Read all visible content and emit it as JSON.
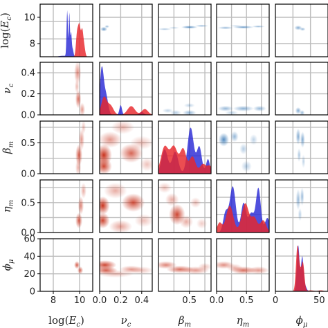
{
  "chart_data": {
    "type": "corner",
    "n": 5,
    "grid": true,
    "colors": {
      "blue": "#2a2ad6",
      "red": "#e8262b",
      "overlap": "#8e2f73",
      "blue_contour": "#2b6fb0",
      "red_contour": "#c8321c"
    },
    "params": [
      {
        "name": "logEc",
        "label_main": "log(",
        "label_sub_base": "E",
        "label_sub": "c",
        "label_close": ")",
        "range": [
          7,
          11
        ],
        "grid": [
          8,
          10
        ],
        "ticks": [
          8,
          10
        ],
        "tick_labels": [
          "8",
          "10"
        ],
        "yticks": [
          8,
          10
        ],
        "ytick_labels": [
          "8",
          "10"
        ]
      },
      {
        "name": "nu_c",
        "label_main": "ν",
        "label_sub": "c",
        "range": [
          0,
          0.5
        ],
        "grid": [
          0.2,
          0.4
        ],
        "ticks": [
          0.0,
          0.2,
          0.4
        ],
        "tick_labels": [
          "0.0",
          "0.2",
          "0.4"
        ],
        "yticks": [
          0.0,
          0.2,
          0.4
        ],
        "ytick_labels": [
          "0.0",
          "0.2",
          "0.4"
        ]
      },
      {
        "name": "beta_m",
        "label_main": "β",
        "label_sub": "m",
        "range": [
          0,
          0.85
        ],
        "grid": [
          0.25,
          0.5,
          0.75
        ],
        "ticks": [
          0.5
        ],
        "tick_labels": [
          "0.5"
        ],
        "yticks": [
          0.0,
          0.5
        ],
        "ytick_labels": [
          "0.0",
          "0.5"
        ]
      },
      {
        "name": "eta_m",
        "label_main": "η",
        "label_sub": "m",
        "range": [
          0,
          0.88
        ],
        "grid": [
          0.25,
          0.5,
          0.75
        ],
        "ticks": [
          0.0,
          0.5
        ],
        "tick_labels": [
          "0.0",
          "0.5"
        ],
        "yticks": [
          0.0,
          0.5
        ],
        "ytick_labels": [
          "0.0",
          "0.5"
        ]
      },
      {
        "name": "phi_mu",
        "label_main": "ϕ",
        "label_sub": "μ",
        "range": [
          0,
          60
        ],
        "grid": [
          20,
          40
        ],
        "ticks": [
          0,
          50
        ],
        "tick_labels": [
          "0",
          "50"
        ],
        "yticks": [
          0,
          20,
          40,
          60
        ],
        "ytick_labels": [
          "0",
          "20",
          "40",
          "60"
        ]
      }
    ],
    "diagonal": [
      {
        "param": 0,
        "series": [
          {
            "color": "blue",
            "peaks": [
              [
                9.06,
                0.95,
                0.05
              ],
              [
                9.22,
                0.9,
                0.04
              ],
              [
                9.35,
                0.5,
                0.05
              ],
              [
                9.48,
                0.15,
                0.06
              ],
              [
                8.75,
                0.02,
                0.3
              ]
            ]
          },
          {
            "color": "red",
            "peaks": [
              [
                9.8,
                0.4,
                0.08
              ],
              [
                9.98,
                0.65,
                0.1
              ],
              [
                10.2,
                0.5,
                0.08
              ],
              [
                10.35,
                0.2,
                0.08
              ]
            ]
          }
        ]
      },
      {
        "param": 1,
        "series": [
          {
            "color": "blue",
            "peaks": [
              [
                0.02,
                0.95,
                0.018
              ],
              [
                0.06,
                0.4,
                0.02
              ],
              [
                0.2,
                0.2,
                0.012
              ],
              [
                0.4,
                0.06,
                0.02
              ]
            ]
          },
          {
            "color": "red",
            "peaks": [
              [
                0.04,
                0.35,
                0.025
              ],
              [
                0.1,
                0.2,
                0.03
              ],
              [
                0.3,
                0.18,
                0.035
              ],
              [
                0.43,
                0.12,
                0.03
              ]
            ]
          }
        ]
      },
      {
        "param": 2,
        "series": [
          {
            "color": "blue",
            "peaks": [
              [
                0.1,
                0.5,
                0.05
              ],
              [
                0.27,
                0.45,
                0.05
              ],
              [
                0.52,
                0.95,
                0.05
              ],
              [
                0.66,
                0.55,
                0.04
              ],
              [
                0.8,
                0.3,
                0.03
              ]
            ]
          },
          {
            "color": "red",
            "peaks": [
              [
                0.1,
                0.55,
                0.06
              ],
              [
                0.25,
                0.55,
                0.06
              ],
              [
                0.4,
                0.5,
                0.05
              ],
              [
                0.55,
                0.35,
                0.05
              ],
              [
                0.72,
                0.2,
                0.05
              ],
              [
                0.83,
                0.15,
                0.04
              ]
            ]
          }
        ]
      },
      {
        "param": 3,
        "series": [
          {
            "color": "blue",
            "peaks": [
              [
                0.15,
                0.4,
                0.04
              ],
              [
                0.27,
                0.95,
                0.05
              ],
              [
                0.45,
                0.6,
                0.04
              ],
              [
                0.58,
                0.4,
                0.05
              ],
              [
                0.7,
                0.9,
                0.04
              ],
              [
                0.85,
                0.3,
                0.04
              ]
            ]
          },
          {
            "color": "red",
            "peaks": [
              [
                0.05,
                0.2,
                0.04
              ],
              [
                0.22,
                0.55,
                0.06
              ],
              [
                0.48,
                0.6,
                0.06
              ],
              [
                0.63,
                0.3,
                0.05
              ],
              [
                0.78,
                0.25,
                0.05
              ]
            ]
          }
        ]
      },
      {
        "param": 4,
        "series": [
          {
            "color": "blue",
            "peaks": [
              [
                26,
                0.95,
                1.5
              ],
              [
                30.5,
                0.65,
                1.3
              ],
              [
                33,
                0.15,
                2.0
              ]
            ]
          },
          {
            "color": "red",
            "peaks": [
              [
                25,
                0.85,
                1.6
              ],
              [
                28,
                0.35,
                1.8
              ],
              [
                31.5,
                0.55,
                1.6
              ],
              [
                40,
                0.02,
                4
              ],
              [
                52,
                0.02,
                3
              ]
            ]
          }
        ]
      }
    ],
    "upper": [
      {
        "row": 0,
        "col": 1,
        "color": "blue_contour",
        "blobs": [
          [
            0.04,
            9.1,
            0.015,
            0.08,
            0.7
          ],
          [
            0.07,
            9.3,
            0.01,
            0.05,
            0.5
          ]
        ]
      },
      {
        "row": 0,
        "col": 2,
        "color": "blue_contour",
        "blobs": [
          [
            0.1,
            9.1,
            0.05,
            0.04,
            0.4
          ],
          [
            0.5,
            9.25,
            0.06,
            0.05,
            0.8
          ],
          [
            0.7,
            9.35,
            0.05,
            0.04,
            0.5
          ],
          [
            0.25,
            9.2,
            0.04,
            0.04,
            0.3
          ]
        ]
      },
      {
        "row": 0,
        "col": 3,
        "color": "blue_contour",
        "blobs": [
          [
            0.15,
            9.2,
            0.06,
            0.05,
            0.5
          ],
          [
            0.45,
            9.25,
            0.08,
            0.05,
            0.7
          ],
          [
            0.7,
            9.3,
            0.05,
            0.04,
            0.5
          ],
          [
            0.32,
            9.35,
            0.05,
            0.03,
            0.3
          ]
        ]
      },
      {
        "row": 0,
        "col": 4,
        "color": "blue_contour",
        "blobs": [
          [
            26,
            9.2,
            2.0,
            0.08,
            0.6
          ],
          [
            31,
            9.1,
            1.5,
            0.06,
            0.5
          ]
        ]
      },
      {
        "row": 1,
        "col": 2,
        "color": "blue_contour",
        "blobs": [
          [
            0.5,
            0.02,
            0.05,
            0.012,
            0.5
          ],
          [
            0.28,
            0.02,
            0.04,
            0.012,
            0.35
          ],
          [
            0.15,
            0.04,
            0.04,
            0.01,
            0.3
          ],
          [
            0.5,
            0.09,
            0.04,
            0.01,
            0.3
          ]
        ]
      },
      {
        "row": 1,
        "col": 3,
        "color": "blue_contour",
        "blobs": [
          [
            0.15,
            0.06,
            0.06,
            0.012,
            0.5
          ],
          [
            0.45,
            0.06,
            0.08,
            0.012,
            0.55
          ],
          [
            0.72,
            0.06,
            0.05,
            0.012,
            0.5
          ],
          [
            0.25,
            0.02,
            0.05,
            0.01,
            0.3
          ]
        ]
      },
      {
        "row": 1,
        "col": 4,
        "color": "blue_contour",
        "blobs": [
          [
            26,
            0.04,
            1.5,
            0.015,
            0.6
          ],
          [
            30.5,
            0.02,
            1.3,
            0.012,
            0.5
          ]
        ]
      },
      {
        "row": 2,
        "col": 3,
        "color": "blue_contour",
        "blobs": [
          [
            0.12,
            0.55,
            0.04,
            0.05,
            0.8
          ],
          [
            0.3,
            0.6,
            0.03,
            0.04,
            0.5
          ],
          [
            0.45,
            0.4,
            0.03,
            0.04,
            0.35
          ],
          [
            0.5,
            0.12,
            0.04,
            0.04,
            0.35
          ],
          [
            0.62,
            0.55,
            0.03,
            0.04,
            0.3
          ]
        ]
      },
      {
        "row": 2,
        "col": 4,
        "color": "blue_contour",
        "blobs": [
          [
            26,
            0.6,
            1.2,
            0.06,
            0.6
          ],
          [
            31,
            0.55,
            1.2,
            0.06,
            0.6
          ],
          [
            27,
            0.3,
            1.0,
            0.05,
            0.4
          ],
          [
            32,
            0.2,
            1.0,
            0.05,
            0.3
          ]
        ]
      },
      {
        "row": 3,
        "col": 4,
        "color": "blue_contour",
        "blobs": [
          [
            26,
            0.55,
            1.2,
            0.08,
            0.5
          ],
          [
            30.5,
            0.6,
            1.0,
            0.07,
            0.5
          ],
          [
            28,
            0.3,
            1.0,
            0.05,
            0.35
          ]
        ]
      }
    ],
    "lower": [
      {
        "row": 1,
        "col": 0,
        "color": "red_contour",
        "blobs": [
          [
            9.85,
            0.4,
            0.12,
            0.05,
            0.55
          ],
          [
            9.9,
            0.15,
            0.1,
            0.04,
            0.7
          ],
          [
            10.2,
            0.05,
            0.1,
            0.03,
            0.5
          ],
          [
            9.8,
            0.27,
            0.08,
            0.03,
            0.35
          ]
        ]
      },
      {
        "row": 2,
        "col": 0,
        "color": "red_contour",
        "blobs": [
          [
            9.95,
            0.3,
            0.12,
            0.08,
            0.8
          ],
          [
            10.15,
            0.55,
            0.1,
            0.08,
            0.5
          ],
          [
            9.9,
            0.1,
            0.1,
            0.06,
            0.4
          ],
          [
            10.3,
            0.75,
            0.08,
            0.05,
            0.3
          ]
        ]
      },
      {
        "row": 3,
        "col": 0,
        "color": "red_contour",
        "blobs": [
          [
            9.95,
            0.2,
            0.12,
            0.06,
            0.8
          ],
          [
            10.1,
            0.45,
            0.1,
            0.07,
            0.6
          ],
          [
            10.3,
            0.7,
            0.1,
            0.06,
            0.4
          ]
        ]
      },
      {
        "row": 4,
        "col": 0,
        "color": "red_contour",
        "blobs": [
          [
            9.8,
            30,
            0.1,
            2.0,
            0.8
          ],
          [
            10.05,
            24,
            0.1,
            2.0,
            0.7
          ]
        ]
      },
      {
        "row": 2,
        "col": 1,
        "color": "red_contour",
        "blobs": [
          [
            0.04,
            0.3,
            0.035,
            0.08,
            1.0
          ],
          [
            0.04,
            0.12,
            0.035,
            0.06,
            0.9
          ],
          [
            0.3,
            0.33,
            0.05,
            0.07,
            0.75
          ],
          [
            0.1,
            0.55,
            0.05,
            0.06,
            0.5
          ],
          [
            0.22,
            0.75,
            0.05,
            0.05,
            0.35
          ],
          [
            0.4,
            0.5,
            0.05,
            0.05,
            0.3
          ],
          [
            0.45,
            0.15,
            0.03,
            0.05,
            0.3
          ]
        ]
      },
      {
        "row": 3,
        "col": 1,
        "color": "red_contour",
        "blobs": [
          [
            0.03,
            0.45,
            0.03,
            0.07,
            1.0
          ],
          [
            0.03,
            0.2,
            0.03,
            0.06,
            0.9
          ],
          [
            0.32,
            0.5,
            0.05,
            0.07,
            0.85
          ],
          [
            0.15,
            0.7,
            0.05,
            0.06,
            0.4
          ],
          [
            0.2,
            0.1,
            0.05,
            0.05,
            0.45
          ],
          [
            0.42,
            0.2,
            0.04,
            0.05,
            0.3
          ]
        ]
      },
      {
        "row": 4,
        "col": 1,
        "color": "red_contour",
        "blobs": [
          [
            0.05,
            30,
            0.05,
            2.5,
            0.9
          ],
          [
            0.06,
            24,
            0.05,
            2.0,
            0.8
          ],
          [
            0.3,
            25,
            0.05,
            2.0,
            0.5
          ],
          [
            0.15,
            20,
            0.08,
            2.0,
            0.3
          ],
          [
            0.4,
            24,
            0.05,
            2.0,
            0.3
          ]
        ]
      },
      {
        "row": 3,
        "col": 2,
        "color": "red_contour",
        "blobs": [
          [
            0.3,
            0.3,
            0.06,
            0.08,
            0.9
          ],
          [
            0.22,
            0.55,
            0.05,
            0.05,
            0.4
          ],
          [
            0.45,
            0.18,
            0.05,
            0.05,
            0.4
          ],
          [
            0.1,
            0.75,
            0.05,
            0.04,
            0.3
          ],
          [
            0.6,
            0.5,
            0.04,
            0.04,
            0.3
          ],
          [
            0.7,
            0.15,
            0.04,
            0.04,
            0.25
          ]
        ]
      },
      {
        "row": 4,
        "col": 2,
        "color": "red_contour",
        "blobs": [
          [
            0.12,
            30,
            0.08,
            2.0,
            0.6
          ],
          [
            0.35,
            25,
            0.1,
            2.0,
            0.7
          ],
          [
            0.6,
            24,
            0.1,
            2.0,
            0.5
          ],
          [
            0.75,
            28,
            0.05,
            2.0,
            0.3
          ]
        ]
      },
      {
        "row": 4,
        "col": 3,
        "color": "red_contour",
        "blobs": [
          [
            0.12,
            30,
            0.08,
            2.0,
            0.55
          ],
          [
            0.45,
            24,
            0.1,
            2.0,
            0.7
          ],
          [
            0.7,
            24,
            0.08,
            2.0,
            0.5
          ],
          [
            0.3,
            27,
            0.06,
            2.0,
            0.35
          ]
        ]
      }
    ]
  }
}
